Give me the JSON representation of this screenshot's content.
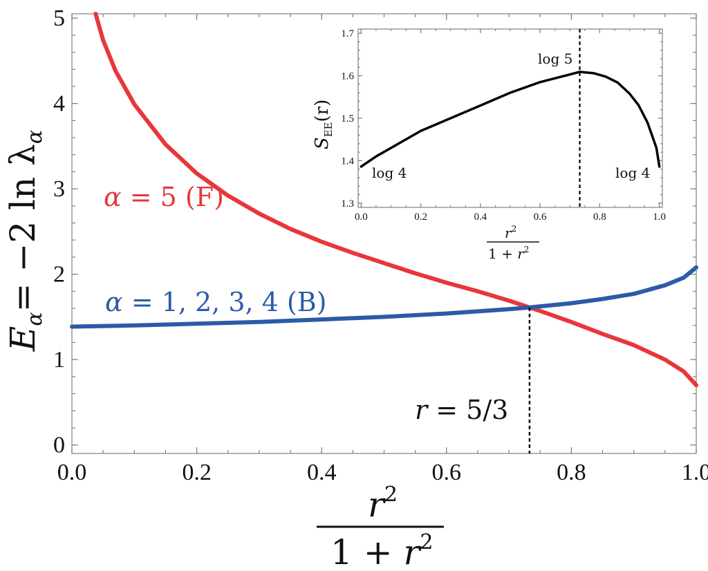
{
  "chart_data": [
    {
      "type": "line",
      "role": "main",
      "xlim": [
        0.0,
        1.0
      ],
      "ylim": [
        -0.1,
        5.05
      ],
      "x_ticks": [
        "0.0",
        "0.2",
        "0.4",
        "0.6",
        "0.8",
        "1.0"
      ],
      "y_ticks": [
        "0",
        "1",
        "2",
        "3",
        "4",
        "5"
      ],
      "xlabel": {
        "numerator": "r",
        "numerator_sup": "2",
        "denominator": "1 + r",
        "denominator_sup": "2"
      },
      "ylabel": {
        "lhs": "E",
        "lhs_sub": "α",
        "rhs": "= −2 ln λ",
        "rhs_sub": "α"
      },
      "grid": false,
      "series": [
        {
          "name": "α = 5 (F)",
          "color": "#e8363a",
          "x": [
            0.038,
            0.05,
            0.07,
            0.1,
            0.15,
            0.2,
            0.25,
            0.3,
            0.35,
            0.4,
            0.45,
            0.5,
            0.55,
            0.6,
            0.65,
            0.7,
            0.733,
            0.75,
            0.8,
            0.85,
            0.9,
            0.95,
            0.98,
            1.0
          ],
          "y": [
            5.05,
            4.74,
            4.38,
            3.99,
            3.52,
            3.18,
            2.92,
            2.71,
            2.53,
            2.38,
            2.25,
            2.13,
            2.01,
            1.9,
            1.8,
            1.69,
            1.61,
            1.57,
            1.44,
            1.3,
            1.17,
            1.0,
            0.86,
            0.7
          ]
        },
        {
          "name": "α = 1, 2, 3, 4 (B)",
          "color": "#2c5aa8",
          "x": [
            0.0,
            0.1,
            0.2,
            0.3,
            0.4,
            0.5,
            0.6,
            0.7,
            0.733,
            0.8,
            0.85,
            0.9,
            0.95,
            0.98,
            1.0
          ],
          "y": [
            1.386,
            1.4,
            1.42,
            1.44,
            1.47,
            1.5,
            1.54,
            1.59,
            1.61,
            1.66,
            1.71,
            1.77,
            1.87,
            1.96,
            2.08
          ]
        }
      ],
      "annotations": {
        "vertical_line_x": 0.733,
        "vertical_line_label": "r = 5/3"
      }
    },
    {
      "type": "line",
      "role": "inset",
      "xlim": [
        -0.01,
        1.01
      ],
      "ylim": [
        1.29,
        1.71
      ],
      "x_ticks": [
        "0.0",
        "0.2",
        "0.4",
        "0.6",
        "0.8",
        "1.0"
      ],
      "y_ticks": [
        "1.3",
        "1.4",
        "1.5",
        "1.6",
        "1.7"
      ],
      "xlabel": {
        "numerator": "r",
        "numerator_sup": "2",
        "denominator": "1 + r",
        "denominator_sup": "2"
      },
      "ylabel": {
        "lhs": "S",
        "lhs_sub": "EE",
        "rhs": "(r)"
      },
      "grid": false,
      "series": [
        {
          "name": "",
          "color": "#000000",
          "x": [
            0.0,
            0.05,
            0.1,
            0.2,
            0.3,
            0.4,
            0.5,
            0.6,
            0.7,
            0.733,
            0.78,
            0.82,
            0.86,
            0.9,
            0.93,
            0.96,
            0.98,
            0.99,
            1.0
          ],
          "y": [
            1.386,
            1.41,
            1.43,
            1.47,
            1.5,
            1.53,
            1.56,
            1.585,
            1.603,
            1.609,
            1.606,
            1.598,
            1.584,
            1.558,
            1.531,
            1.49,
            1.45,
            1.43,
            1.386
          ]
        }
      ],
      "annotations": {
        "vertical_line_x": 0.733,
        "labels": [
          "log 4",
          "log 5",
          "log 4"
        ]
      }
    }
  ],
  "labels": {
    "f_label_alpha": "α",
    "f_label_rest": " = 5 (F)",
    "b_label_alpha": "α",
    "b_label_rest": " = 1, 2, 3, 4 (B)",
    "r_label_r": "r",
    "r_label_rest": " = 5/3",
    "log4_left": "log 4",
    "log5_peak": "log 5",
    "log4_right": "log 4"
  }
}
